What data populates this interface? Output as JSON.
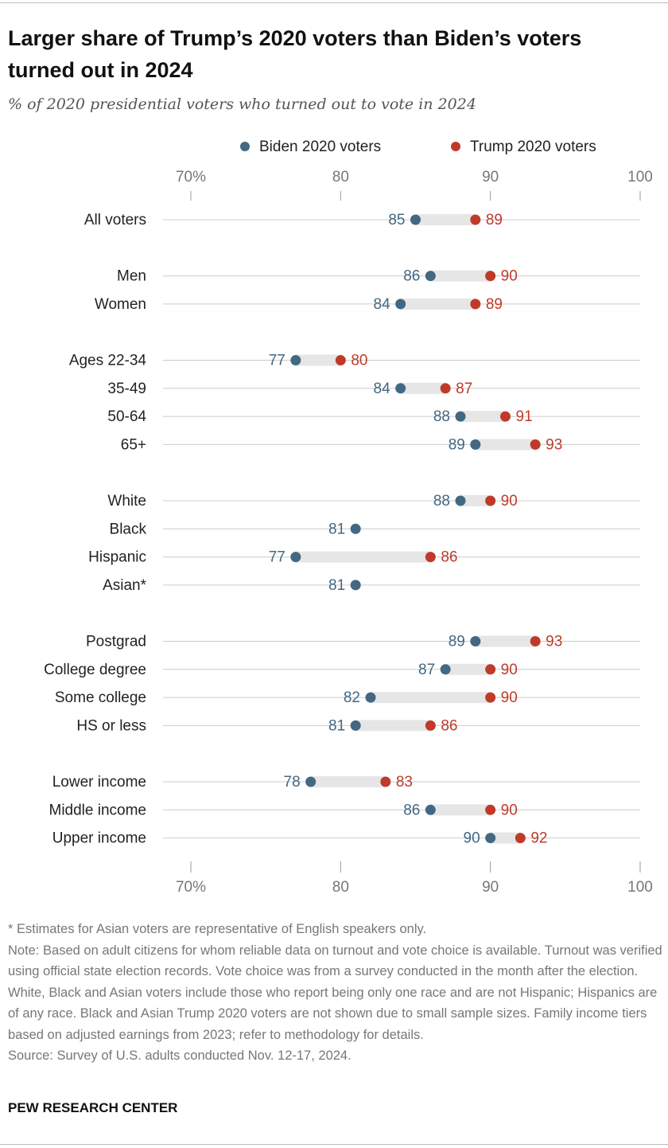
{
  "chart_data": {
    "type": "dot",
    "title": "Larger share of Trump’s 2020 voters than Biden’s voters turned out in 2024",
    "subtitle": "% of 2020 presidential voters who turned out to vote in 2024",
    "categories": [
      "All voters",
      "Men",
      "Women",
      "Ages 22-34",
      "35-49",
      "50-64",
      "65+",
      "White",
      "Black",
      "Hispanic",
      "Asian*",
      "Postgrad",
      "College degree",
      "Some college",
      "HS or less",
      "Lower income",
      "Middle income",
      "Upper income"
    ],
    "series": [
      {
        "name": "Biden 2020 voters",
        "color": "#436882",
        "values": [
          85,
          86,
          84,
          77,
          84,
          88,
          89,
          88,
          81,
          77,
          81,
          89,
          87,
          82,
          81,
          78,
          86,
          90
        ]
      },
      {
        "name": "Trump 2020 voters",
        "color": "#bf3a2b",
        "values": [
          89,
          90,
          89,
          80,
          87,
          91,
          93,
          90,
          null,
          86,
          null,
          93,
          90,
          90,
          86,
          83,
          90,
          92
        ]
      }
    ],
    "xlim": [
      70,
      100
    ],
    "xticks": [
      {
        "value": 70,
        "label": "70%"
      },
      80,
      90,
      100
    ]
  },
  "notes": [
    "* Estimates for Asian voters are representative of English speakers only.",
    "Note: Based on adult citizens for whom reliable data on turnout and vote choice is available. Turnout was verified using official state election records. Vote choice was from a survey conducted in the month after the election. White, Black and Asian voters include those who report being only one race and are not Hispanic; Hispanics are of any race. Black and Asian Trump 2020 voters are not shown due to small sample sizes. Family income tiers based on adjusted earnings from 2023; refer to methodology for details.",
    "Source: Survey of U.S. adults conducted Nov. 12-17, 2024."
  ],
  "branding": "PEW RESEARCH CENTER"
}
